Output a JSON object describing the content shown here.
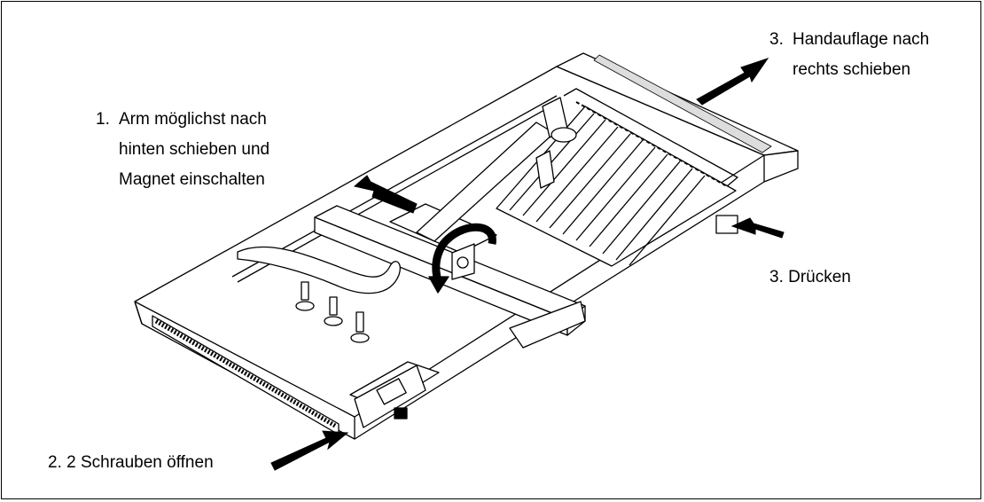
{
  "labels": {
    "step1": {
      "num": "1.",
      "lines": [
        "Arm möglichst nach",
        "hinten schieben und",
        "Magnet einschalten"
      ]
    },
    "step2": {
      "text": "2. 2 Schrauben öffnen"
    },
    "step3a": {
      "num": "3.",
      "lines": [
        "Handauflage nach",
        "rechts schieben"
      ]
    },
    "step3b": {
      "text": "3. Drücken"
    }
  },
  "colors": {
    "line": "#000000",
    "background": "#ffffff",
    "fill": "#ffffff",
    "shade": "#e6e6e6"
  }
}
